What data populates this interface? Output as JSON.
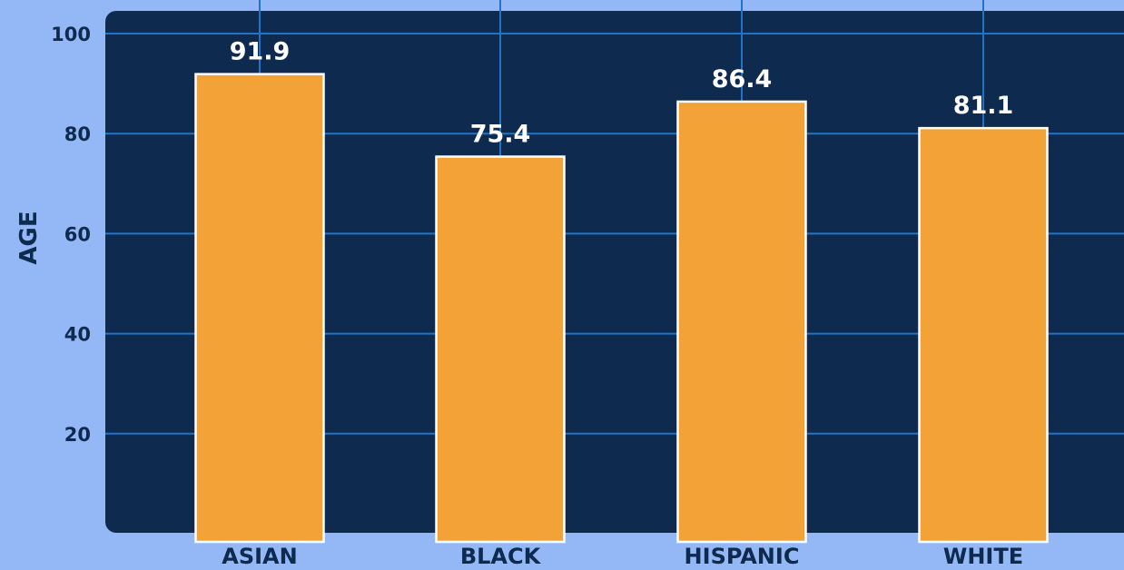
{
  "chart_data": {
    "type": "bar",
    "categories": [
      "ASIAN",
      "BLACK",
      "HISPANIC",
      "WHITE"
    ],
    "values": [
      91.9,
      75.4,
      86.4,
      81.1
    ],
    "value_labels": [
      "91.9",
      "75.4",
      "86.4",
      "81.1"
    ],
    "title": "",
    "xlabel": "",
    "ylabel": "AGE",
    "ylim": [
      0,
      105
    ],
    "yticks": [
      20,
      40,
      60,
      80,
      100
    ],
    "ytick_labels": [
      "20",
      "40",
      "60",
      "80",
      "100"
    ],
    "grid": true,
    "legend": "none",
    "colors": {
      "page_background": "#93b8f5",
      "plot_background": "#0f2a4f",
      "gridline": "#1f74c9",
      "bar_fill": "#f2a236",
      "bar_stroke": "#ffffff",
      "value_label": "#ffffff",
      "axis_text": "#0f2a4f"
    }
  }
}
